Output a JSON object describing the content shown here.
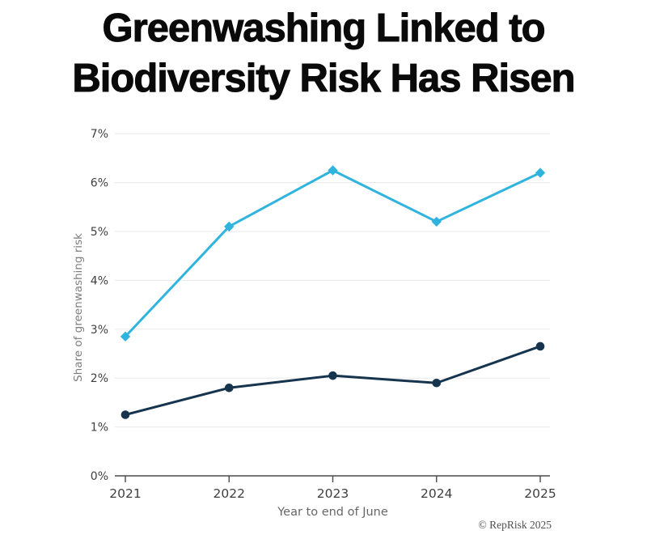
{
  "title": {
    "line1": "Greenwashing Linked to",
    "line2": "Biodiversity Risk Has Risen"
  },
  "footer": {
    "credit": "© RepRisk 2025"
  },
  "palette": {
    "light_blue": "#2FB4DE",
    "dark_navy": "#16344E",
    "gridline": "#E8E8E8",
    "axis": "#4A4A4A",
    "tick_label": "#3F3F3F",
    "axis_title": "#666666",
    "y_axis_title": "#7E7E7E",
    "credit_text": "#4F4F4F",
    "title_text": "#0A0A0A"
  },
  "chart_data": {
    "type": "line",
    "title": "Greenwashing Linked to Biodiversity Risk Has Risen",
    "x": [
      "2021",
      "2022",
      "2023",
      "2024",
      "2025"
    ],
    "xlabel": "Year to end of June",
    "ylabel": "Share of greenwashing risk",
    "ylim": [
      0,
      7
    ],
    "yticks": [
      "0%",
      "1%",
      "2%",
      "3%",
      "4%",
      "5%",
      "6%",
      "7%"
    ],
    "grid": true,
    "legend": "none",
    "series": [
      {
        "name": "light-blue",
        "color": "#2FB4DE",
        "marker": "diamond",
        "values": [
          2.85,
          5.1,
          6.25,
          5.2,
          6.2
        ]
      },
      {
        "name": "dark-navy",
        "color": "#16344E",
        "marker": "circle",
        "values": [
          1.25,
          1.8,
          2.05,
          1.9,
          2.65
        ]
      }
    ],
    "annotations": [
      "© RepRisk 2025"
    ]
  }
}
